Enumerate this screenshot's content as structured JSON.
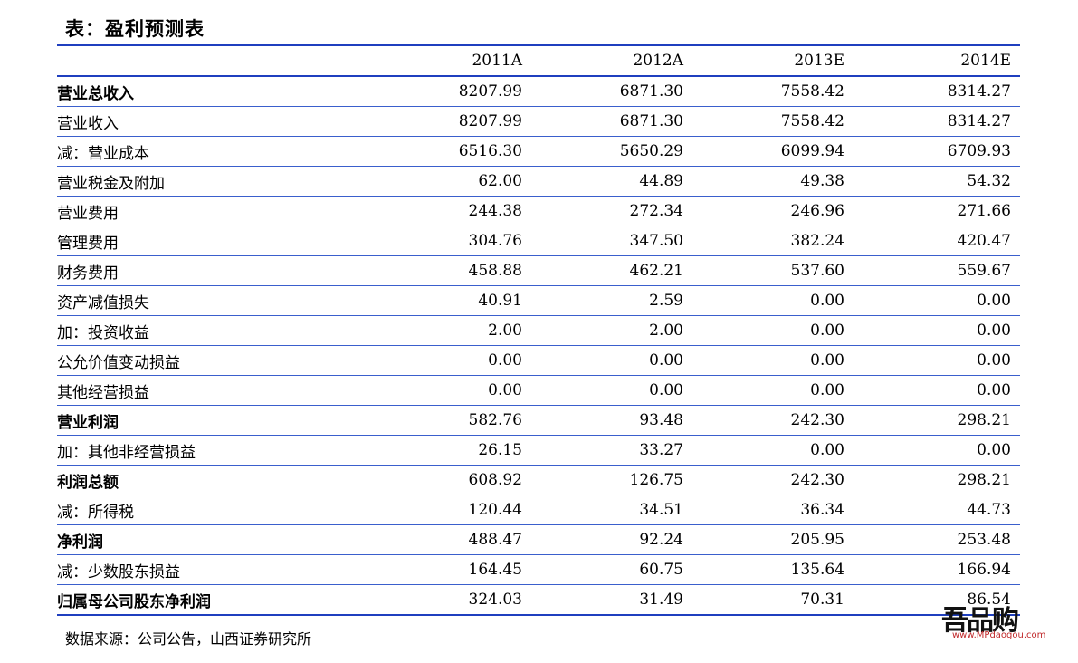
{
  "title": "表：盈利预测表",
  "columns": [
    "",
    "2011A",
    "2012A",
    "2013E",
    "2014E"
  ],
  "rows": [
    {
      "label": "营业总收入",
      "level": 0,
      "values": [
        "8207.99",
        "6871.30",
        "7558.42",
        "8314.27"
      ]
    },
    {
      "label": "营业收入",
      "level": 2,
      "values": [
        "8207.99",
        "6871.30",
        "7558.42",
        "8314.27"
      ]
    },
    {
      "label": "减：营业成本",
      "level": 1,
      "values": [
        "6516.30",
        "5650.29",
        "6099.94",
        "6709.93"
      ]
    },
    {
      "label": "营业税金及附加",
      "level": 2,
      "values": [
        "62.00",
        "44.89",
        "49.38",
        "54.32"
      ]
    },
    {
      "label": "营业费用",
      "level": 2,
      "values": [
        "244.38",
        "272.34",
        "246.96",
        "271.66"
      ]
    },
    {
      "label": "管理费用",
      "level": 2,
      "values": [
        "304.76",
        "347.50",
        "382.24",
        "420.47"
      ]
    },
    {
      "label": "财务费用",
      "level": 2,
      "values": [
        "458.88",
        "462.21",
        "537.60",
        "559.67"
      ]
    },
    {
      "label": "资产减值损失",
      "level": 2,
      "values": [
        "40.91",
        "2.59",
        "0.00",
        "0.00"
      ]
    },
    {
      "label": "加：投资收益",
      "level": 1,
      "values": [
        "2.00",
        "2.00",
        "0.00",
        "0.00"
      ]
    },
    {
      "label": "公允价值变动损益",
      "level": 2,
      "values": [
        "0.00",
        "0.00",
        "0.00",
        "0.00"
      ]
    },
    {
      "label": "其他经营损益",
      "level": 2,
      "values": [
        "0.00",
        "0.00",
        "0.00",
        "0.00"
      ]
    },
    {
      "label": "营业利润",
      "level": 0,
      "values": [
        "582.76",
        "93.48",
        "242.30",
        "298.21"
      ]
    },
    {
      "label": "加：其他非经营损益",
      "level": 1,
      "values": [
        "26.15",
        "33.27",
        "0.00",
        "0.00"
      ]
    },
    {
      "label": "利润总额",
      "level": 0,
      "values": [
        "608.92",
        "126.75",
        "242.30",
        "298.21"
      ]
    },
    {
      "label": "减：所得税",
      "level": 1,
      "values": [
        "120.44",
        "34.51",
        "36.34",
        "44.73"
      ]
    },
    {
      "label": "净利润",
      "level": 0,
      "values": [
        "488.47",
        "92.24",
        "205.95",
        "253.48"
      ]
    },
    {
      "label": "减：少数股东损益",
      "level": 1,
      "values": [
        "164.45",
        "60.75",
        "135.64",
        "166.94"
      ]
    },
    {
      "label": "归属母公司股东净利润",
      "level": 0,
      "values": [
        "324.03",
        "31.49",
        "70.31",
        "86.54"
      ]
    }
  ],
  "source": "数据来源：公司公告，山西证券研究所",
  "watermark": {
    "text": "吾品购",
    "site": "www.MPdaogou.com"
  }
}
